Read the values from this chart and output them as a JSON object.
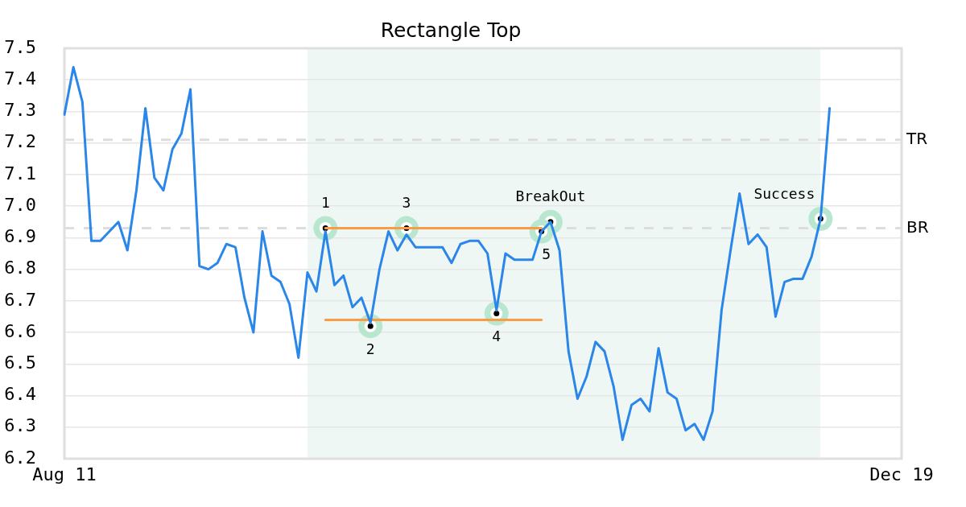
{
  "chart_data": {
    "type": "line",
    "title": "Rectangle Top",
    "categories": [
      "Aug 11",
      null,
      null,
      null,
      null,
      null,
      null,
      null,
      null,
      null,
      null,
      null,
      null,
      null,
      null,
      null,
      null,
      null,
      null,
      null,
      null,
      null,
      null,
      null,
      null,
      null,
      null,
      null,
      null,
      null,
      null,
      null,
      null,
      null,
      null,
      null,
      null,
      null,
      null,
      null,
      null,
      null,
      null,
      null,
      null,
      null,
      null,
      null,
      null,
      null,
      null,
      null,
      null,
      null,
      null,
      null,
      null,
      null,
      null,
      null,
      null,
      null,
      null,
      null,
      null,
      null,
      null,
      null,
      null,
      null,
      null,
      null,
      null,
      null,
      null,
      null,
      null,
      null,
      null,
      null,
      null,
      null,
      null,
      null,
      null,
      null,
      null,
      null,
      null,
      null,
      null,
      null,
      null,
      "Dec 19"
    ],
    "ylim": [
      6.2,
      7.5
    ],
    "yticks": [
      6.2,
      6.3,
      6.4,
      6.5,
      6.6,
      6.7,
      6.8,
      6.9,
      {
        "value": 7,
        "label": "7.0"
      },
      7.1,
      7.2,
      7.3,
      7.4,
      7.5
    ],
    "grid": "y",
    "marker": "none",
    "series": [
      {
        "color": "#2a86e8",
        "values": [
          7.29,
          7.44,
          7.33,
          6.89,
          6.89,
          6.92,
          6.95,
          6.86,
          7.05,
          7.31,
          7.09,
          7.05,
          7.18,
          7.23,
          7.37,
          6.81,
          6.8,
          6.82,
          6.88,
          6.87,
          6.71,
          6.6,
          6.92,
          6.78,
          6.76,
          6.69,
          6.52,
          6.79,
          6.73,
          6.92,
          6.75,
          6.78,
          6.68,
          6.71,
          6.63,
          6.8,
          6.92,
          6.86,
          6.91,
          6.87,
          6.87,
          6.87,
          6.87,
          6.82,
          6.88,
          6.89,
          6.89,
          6.85,
          6.67,
          6.85,
          6.83,
          6.83,
          6.83,
          6.92,
          6.95,
          6.86,
          6.54,
          6.39,
          6.46,
          6.57,
          6.54,
          6.43,
          6.26,
          6.37,
          6.39,
          6.35,
          6.55,
          6.41,
          6.39,
          6.29,
          6.31,
          6.26,
          6.35,
          6.67,
          6.86,
          7.04,
          6.88,
          6.91,
          6.87,
          6.65,
          6.76,
          6.77,
          6.77,
          6.84,
          6.96,
          7.31,
          null,
          null,
          null,
          null,
          null,
          null,
          null,
          null
        ]
      },
      {
        "type": "line",
        "color": "#fa9c45",
        "values": [
          null,
          null,
          null,
          null,
          null,
          null,
          null,
          null,
          null,
          null,
          null,
          null,
          null,
          null,
          null,
          null,
          null,
          null,
          null,
          null,
          null,
          null,
          null,
          null,
          null,
          null,
          null,
          null,
          null,
          6.93,
          6.93,
          6.93,
          6.93,
          6.93,
          6.93,
          6.93,
          6.93,
          6.93,
          6.93,
          6.93,
          6.93,
          6.93,
          6.93,
          6.93,
          6.93,
          6.93,
          6.93,
          6.93,
          6.93,
          6.93,
          6.93,
          6.93,
          6.93,
          6.93,
          null,
          null,
          null,
          null,
          null,
          null,
          null,
          null,
          null,
          null,
          null,
          null,
          null,
          null,
          null,
          null,
          null,
          null,
          null,
          null,
          null,
          null,
          null,
          null,
          null,
          null,
          null,
          null,
          null,
          null,
          null,
          null,
          null,
          null,
          null,
          null,
          null,
          null,
          null,
          null
        ]
      },
      {
        "type": "line",
        "color": "#fa9c45",
        "values": [
          null,
          null,
          null,
          null,
          null,
          null,
          null,
          null,
          null,
          null,
          null,
          null,
          null,
          null,
          null,
          null,
          null,
          null,
          null,
          null,
          null,
          null,
          null,
          null,
          null,
          null,
          null,
          null,
          null,
          6.64,
          6.64,
          6.64,
          6.64,
          6.64,
          6.64,
          6.64,
          6.64,
          6.64,
          6.64,
          6.64,
          6.64,
          6.64,
          6.64,
          6.64,
          6.64,
          6.64,
          6.64,
          6.64,
          6.64,
          6.64,
          6.64,
          6.64,
          6.64,
          6.64,
          null,
          null,
          null,
          null,
          null,
          null,
          null,
          null,
          null,
          null,
          null,
          null,
          null,
          null,
          null,
          null,
          null,
          null,
          null,
          null,
          null,
          null,
          null,
          null,
          null,
          null,
          null,
          null,
          null,
          null,
          null,
          null,
          null,
          null,
          null,
          null,
          null,
          null,
          null,
          null
        ]
      },
      {
        "type": "scatter",
        "name": "1",
        "color": "#b9e6cf",
        "marker": "circle",
        "values": [
          null,
          null,
          null,
          null,
          null,
          null,
          null,
          null,
          null,
          null,
          null,
          null,
          null,
          null,
          null,
          null,
          null,
          null,
          null,
          null,
          null,
          null,
          null,
          null,
          null,
          null,
          null,
          null,
          null,
          6.93,
          null,
          null,
          null,
          null,
          null,
          null,
          null,
          null,
          null,
          null,
          null,
          null,
          null,
          null,
          null,
          null,
          null,
          null,
          null,
          null,
          null,
          null,
          null,
          null,
          null,
          null,
          null,
          null,
          null,
          null,
          null,
          null,
          null,
          null,
          null,
          null,
          null,
          null,
          null,
          null,
          null,
          null,
          null,
          null,
          null,
          null,
          null,
          null,
          null,
          null,
          null,
          null,
          null,
          null,
          null,
          null,
          null,
          null,
          null,
          null,
          null,
          null,
          null,
          null
        ]
      },
      {
        "type": "scatter",
        "name": "2",
        "color": "#b9e6cf",
        "marker": "circle",
        "values": [
          null,
          null,
          null,
          null,
          null,
          null,
          null,
          null,
          null,
          null,
          null,
          null,
          null,
          null,
          null,
          null,
          null,
          null,
          null,
          null,
          null,
          null,
          null,
          null,
          null,
          null,
          null,
          null,
          null,
          null,
          null,
          null,
          null,
          null,
          6.62,
          null,
          null,
          null,
          null,
          null,
          null,
          null,
          null,
          null,
          null,
          null,
          null,
          null,
          null,
          null,
          null,
          null,
          null,
          null,
          null,
          null,
          null,
          null,
          null,
          null,
          null,
          null,
          null,
          null,
          null,
          null,
          null,
          null,
          null,
          null,
          null,
          null,
          null,
          null,
          null,
          null,
          null,
          null,
          null,
          null,
          null,
          null,
          null,
          null,
          null,
          null,
          null,
          null,
          null,
          null,
          null,
          null,
          null,
          null
        ]
      },
      {
        "type": "scatter",
        "name": "3",
        "color": "#b9e6cf",
        "marker": "circle",
        "values": [
          null,
          null,
          null,
          null,
          null,
          null,
          null,
          null,
          null,
          null,
          null,
          null,
          null,
          null,
          null,
          null,
          null,
          null,
          null,
          null,
          null,
          null,
          null,
          null,
          null,
          null,
          null,
          null,
          null,
          null,
          null,
          null,
          null,
          null,
          null,
          null,
          null,
          null,
          6.93,
          null,
          null,
          null,
          null,
          null,
          null,
          null,
          null,
          null,
          null,
          null,
          null,
          null,
          null,
          null,
          null,
          null,
          null,
          null,
          null,
          null,
          null,
          null,
          null,
          null,
          null,
          null,
          null,
          null,
          null,
          null,
          null,
          null,
          null,
          null,
          null,
          null,
          null,
          null,
          null,
          null,
          null,
          null,
          null,
          null,
          null,
          null,
          null,
          null,
          null,
          null,
          null,
          null,
          null,
          null
        ]
      },
      {
        "type": "scatter",
        "name": "4",
        "color": "#b9e6cf",
        "marker": "circle",
        "values": [
          null,
          null,
          null,
          null,
          null,
          null,
          null,
          null,
          null,
          null,
          null,
          null,
          null,
          null,
          null,
          null,
          null,
          null,
          null,
          null,
          null,
          null,
          null,
          null,
          null,
          null,
          null,
          null,
          null,
          null,
          null,
          null,
          null,
          null,
          null,
          null,
          null,
          null,
          null,
          null,
          null,
          null,
          null,
          null,
          null,
          null,
          null,
          null,
          6.66,
          null,
          null,
          null,
          null,
          null,
          null,
          null,
          null,
          null,
          null,
          null,
          null,
          null,
          null,
          null,
          null,
          null,
          null,
          null,
          null,
          null,
          null,
          null,
          null,
          null,
          null,
          null,
          null,
          null,
          null,
          null,
          null,
          null,
          null,
          null,
          null,
          null,
          null,
          null,
          null,
          null,
          null,
          null,
          null,
          null
        ]
      },
      {
        "type": "scatter",
        "name": "5",
        "color": "#b9e6cf",
        "marker": "circle",
        "values": [
          null,
          null,
          null,
          null,
          null,
          null,
          null,
          null,
          null,
          null,
          null,
          null,
          null,
          null,
          null,
          null,
          null,
          null,
          null,
          null,
          null,
          null,
          null,
          null,
          null,
          null,
          null,
          null,
          null,
          null,
          null,
          null,
          null,
          null,
          null,
          null,
          null,
          null,
          null,
          null,
          null,
          null,
          null,
          null,
          null,
          null,
          null,
          null,
          null,
          null,
          null,
          null,
          null,
          6.92,
          null,
          null,
          null,
          null,
          null,
          null,
          null,
          null,
          null,
          null,
          null,
          null,
          null,
          null,
          null,
          null,
          null,
          null,
          null,
          null,
          null,
          null,
          null,
          null,
          null,
          null,
          null,
          null,
          null,
          null,
          null,
          null,
          null,
          null,
          null,
          null,
          null,
          null,
          null,
          null
        ]
      },
      {
        "type": "scatter",
        "name": "BreakOut",
        "color": "#b9e6cf",
        "marker": "circle",
        "values": [
          null,
          null,
          null,
          null,
          null,
          null,
          null,
          null,
          null,
          null,
          null,
          null,
          null,
          null,
          null,
          null,
          null,
          null,
          null,
          null,
          null,
          null,
          null,
          null,
          null,
          null,
          null,
          null,
          null,
          null,
          null,
          null,
          null,
          null,
          null,
          null,
          null,
          null,
          null,
          null,
          null,
          null,
          null,
          null,
          null,
          null,
          null,
          null,
          null,
          null,
          null,
          null,
          null,
          null,
          6.95,
          null,
          null,
          null,
          null,
          null,
          null,
          null,
          null,
          null,
          null,
          null,
          null,
          null,
          null,
          null,
          null,
          null,
          null,
          null,
          null,
          null,
          null,
          null,
          null,
          null,
          null,
          null,
          null,
          null,
          null,
          null,
          null,
          null,
          null,
          null,
          null,
          null,
          null,
          null
        ]
      },
      {
        "type": "scatter",
        "name": "Success",
        "color": "#b9e6cf",
        "marker": "circle",
        "values": [
          null,
          null,
          null,
          null,
          null,
          null,
          null,
          null,
          null,
          null,
          null,
          null,
          null,
          null,
          null,
          null,
          null,
          null,
          null,
          null,
          null,
          null,
          null,
          null,
          null,
          null,
          null,
          null,
          null,
          null,
          null,
          null,
          null,
          null,
          null,
          null,
          null,
          null,
          null,
          null,
          null,
          null,
          null,
          null,
          null,
          null,
          null,
          null,
          null,
          null,
          null,
          null,
          null,
          null,
          null,
          null,
          null,
          null,
          null,
          null,
          null,
          null,
          null,
          null,
          null,
          null,
          null,
          null,
          null,
          null,
          null,
          null,
          null,
          null,
          null,
          null,
          null,
          null,
          null,
          null,
          null,
          null,
          null,
          null,
          6.96,
          null,
          null,
          null,
          null,
          null,
          null,
          null,
          null,
          null
        ]
      }
    ],
    "ref_lines": [
      {
        "axis": "y",
        "value": 7.21,
        "label": "TR",
        "color": "#dddddd",
        "line_style": "dashed"
      },
      {
        "axis": "y",
        "value": 6.93,
        "label": "BR",
        "color": "#dddddd",
        "line_style": "dashed"
      }
    ]
  }
}
